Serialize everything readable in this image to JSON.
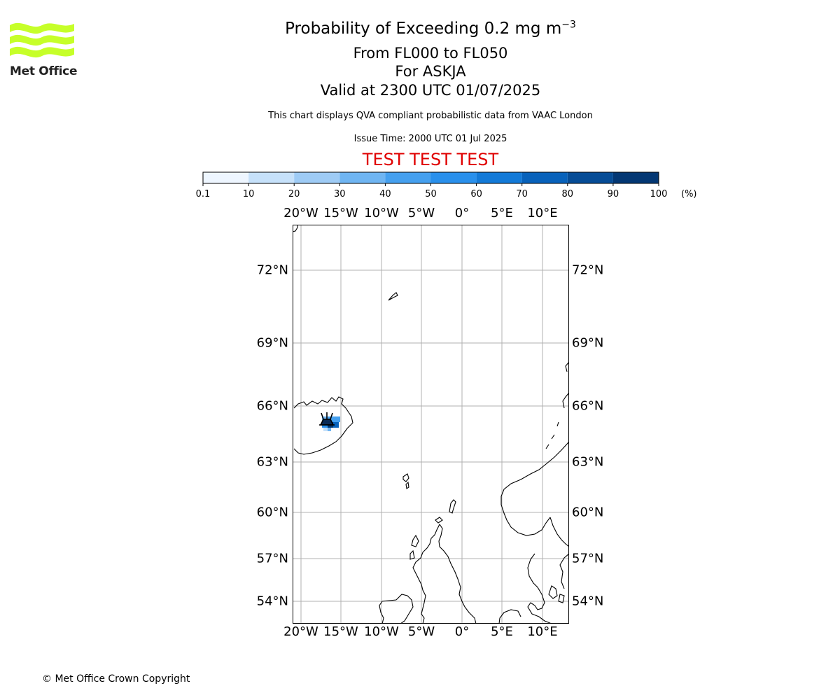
{
  "branding": {
    "logo_text": "Met Office",
    "logo_color": "#c6ff29"
  },
  "title": {
    "main": "Probability of Exceeding 0.2 mg m",
    "main_superscript": "−3",
    "levels": "From FL000 to FL050",
    "volcano": "For ASKJA",
    "valid": "Valid at 2300 UTC 01/07/2025"
  },
  "description": "This chart displays QVA compliant probabilistic data from VAAC London",
  "issue_time": "Issue Time: 2000 UTC 01 Jul 2025",
  "test_banner": "TEST TEST TEST",
  "test_color": "#e00000",
  "colorbar": {
    "ticks": [
      "0.1",
      "10",
      "20",
      "30",
      "40",
      "50",
      "60",
      "70",
      "80",
      "90",
      "100"
    ],
    "unit": "(%)",
    "colors": [
      "#eef6ff",
      "#c6e1fa",
      "#9ecbf5",
      "#6fb5f2",
      "#45a0ef",
      "#2990ec",
      "#137ad8",
      "#0862bb",
      "#064c96",
      "#033773"
    ]
  },
  "map": {
    "lon_labels": [
      "20°W",
      "15°W",
      "10°W",
      "5°W",
      "0°",
      "5°E",
      "10°E"
    ],
    "lat_labels": [
      "72°N",
      "69°N",
      "66°N",
      "63°N",
      "60°N",
      "57°N",
      "54°N"
    ]
  },
  "copyright": "© Met Office Crown Copyright"
}
